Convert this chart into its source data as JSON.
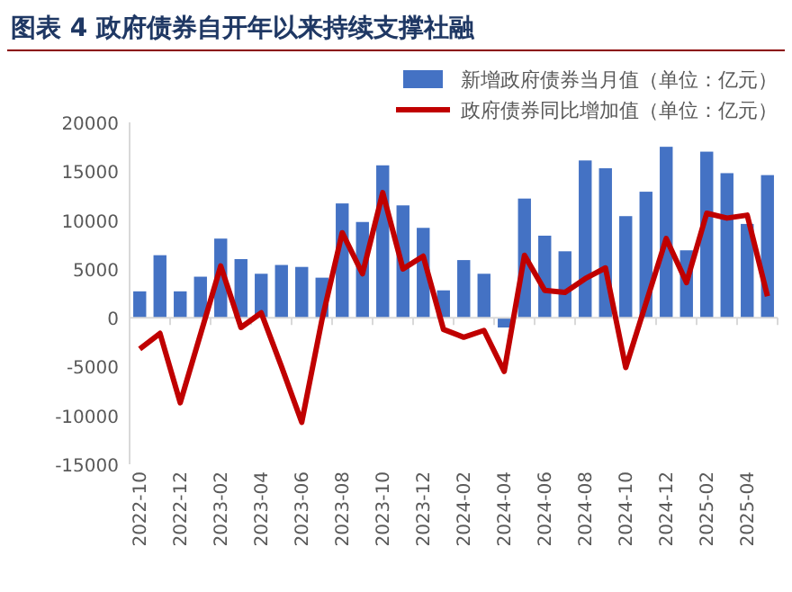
{
  "chart_data": {
    "type": "bar",
    "title": "图表 4  政府债券自开年以来持续支撑社融",
    "categories": [
      "2022-10",
      null,
      "2022-12",
      null,
      "2023-02",
      null,
      "2023-04",
      null,
      "2023-06",
      null,
      "2023-08",
      null,
      "2023-10",
      null,
      "2023-12",
      null,
      "2024-02",
      null,
      "2024-04",
      null,
      "2024-06",
      null,
      "2024-08",
      null,
      "2024-10",
      null,
      "2024-12",
      null,
      "2025-02",
      null,
      "2025-04",
      null
    ],
    "series": [
      {
        "name": "新增政府债券当月值（单位：亿元）",
        "color": "#4472c4",
        "values": [
          2700,
          6400,
          2700,
          4200,
          8100,
          6000,
          4500,
          5400,
          5200,
          4100,
          11700,
          9800,
          15600,
          11500,
          9200,
          2800,
          5900,
          4500,
          -1000,
          12200,
          8400,
          6800,
          16100,
          15300,
          10400,
          12900,
          17500,
          6900,
          17000,
          14800,
          9600,
          14600
        ]
      },
      {
        "name": "政府债券同比增加值（单位：亿元）",
        "type": "line",
        "color": "#c00000",
        "values": [
          -3200,
          -1600,
          -8700,
          -1700,
          5300,
          -1000,
          500,
          -5000,
          -10700,
          -200,
          8700,
          4500,
          12800,
          5000,
          6300,
          -1200,
          -2000,
          -1300,
          -5500,
          6400,
          2800,
          2600,
          4000,
          5100,
          -5100,
          1500,
          8100,
          3600,
          10700,
          10200,
          10500,
          2200
        ]
      }
    ],
    "ylim": [
      -15000,
      20000
    ],
    "yticks": [
      -15000,
      -10000,
      -5000,
      0,
      5000,
      10000,
      15000,
      20000
    ],
    "legend": "top right",
    "marker": "none",
    "line_style": "solid"
  }
}
